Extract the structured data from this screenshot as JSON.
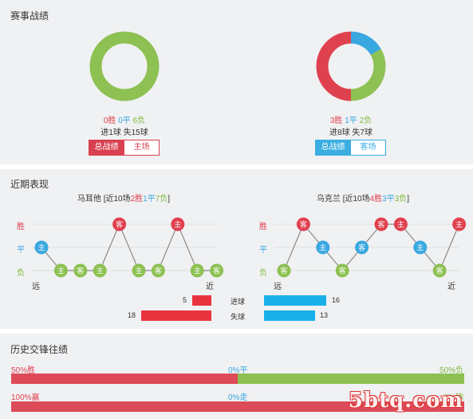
{
  "colors": {
    "win": "#e0414f",
    "draw": "#3aa8e0",
    "loss": "#8dc153",
    "neutral": "#9e9e9e"
  },
  "summary": {
    "title": "赛事战绩",
    "left": {
      "win": "0胜",
      "draw": "0平",
      "loss": "6负",
      "goals": "进1球 失15球",
      "donut": {
        "win": 0,
        "draw": 0,
        "loss": 6
      },
      "tab_total": "总战绩",
      "tab_home": "主场"
    },
    "right": {
      "win": "3胜",
      "draw": "1平",
      "loss": "2负",
      "goals": "进8球 失7球",
      "donut": {
        "win": 3,
        "draw": 1,
        "loss": 2
      },
      "tab_total": "总战绩",
      "tab_away": "客场"
    }
  },
  "recent": {
    "title": "近期表现",
    "left": {
      "team": "马耳他",
      "prefix": " [近10场",
      "win": "2胜",
      "draw": "1平",
      "loss": "7负",
      "suffix": "]",
      "y_labels": [
        "胜",
        "平",
        "负"
      ],
      "far": "远",
      "near": "近",
      "matches": [
        {
          "venue": "主",
          "result": "平"
        },
        {
          "venue": "主",
          "result": "负"
        },
        {
          "venue": "客",
          "result": "负"
        },
        {
          "venue": "主",
          "result": "负"
        },
        {
          "venue": "客",
          "result": "胜"
        },
        {
          "venue": "主",
          "result": "负"
        },
        {
          "venue": "客",
          "result": "负"
        },
        {
          "venue": "主",
          "result": "胜"
        },
        {
          "venue": "主",
          "result": "负"
        },
        {
          "venue": "客",
          "result": "负"
        }
      ]
    },
    "right": {
      "team": "乌克兰",
      "prefix": " [近10场",
      "win": "4胜",
      "draw": "3平",
      "loss": "3负",
      "suffix": "]",
      "y_labels": [
        "胜",
        "平",
        "负"
      ],
      "far": "远",
      "near": "近",
      "matches": [
        {
          "venue": "客",
          "result": "负"
        },
        {
          "venue": "客",
          "result": "胜"
        },
        {
          "venue": "主",
          "result": "平"
        },
        {
          "venue": "客",
          "result": "负"
        },
        {
          "venue": "客",
          "result": "平"
        },
        {
          "venue": "客",
          "result": "胜"
        },
        {
          "venue": "主",
          "result": "胜"
        },
        {
          "venue": "主",
          "result": "平"
        },
        {
          "venue": "客",
          "result": "负"
        },
        {
          "venue": "主",
          "result": "胜"
        }
      ]
    },
    "goals": {
      "scored_label": "进球",
      "conceded_label": "失球",
      "left_scored": 5,
      "left_conceded": 18,
      "right_scored": 16,
      "right_conceded": 13
    }
  },
  "history": {
    "title": "历史交锋往绩",
    "row1": {
      "left": "50%胜",
      "mid": "0%平",
      "right": "50%负",
      "left_pct": 50,
      "mid_pct": 0,
      "right_pct": 50
    },
    "row2": {
      "left": "100%赢",
      "mid": "0%走",
      "right": "0%输",
      "left_pct": 100,
      "mid_pct": 0,
      "right_pct": 0
    }
  },
  "watermark": "5btq.com"
}
